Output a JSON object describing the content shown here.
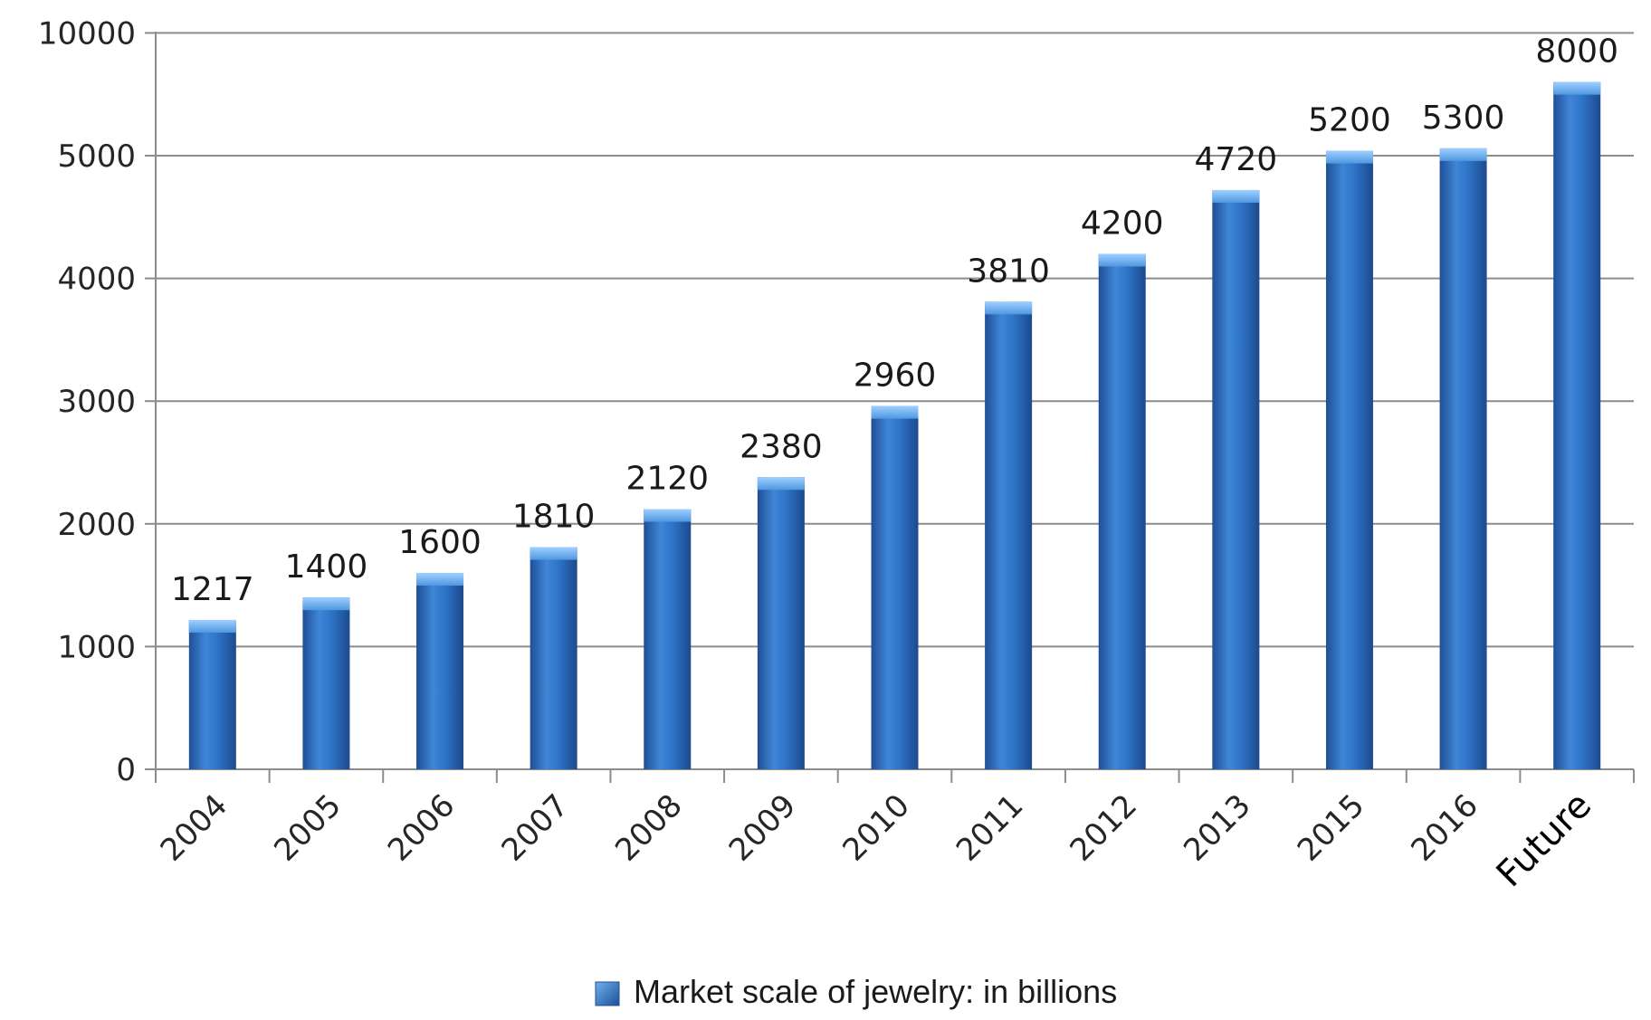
{
  "chart_data": {
    "type": "bar",
    "categories": [
      "2004",
      "2005",
      "2006",
      "2007",
      "2008",
      "2009",
      "2010",
      "2011",
      "2012",
      "2013",
      "2015",
      "2016",
      "Future"
    ],
    "series": [
      {
        "name": "Market scale of jewelry: in billions",
        "values": [
          1217,
          1400,
          1600,
          1810,
          2120,
          2380,
          2960,
          3810,
          4200,
          4720,
          5200,
          5300,
          8000
        ]
      }
    ],
    "y_tick_labels": [
      "0",
      "1000",
      "2000",
      "3000",
      "4000",
      "5000",
      "10000"
    ],
    "y_scale_note_values": [
      0,
      1000,
      2000,
      3000,
      4000,
      5000,
      10000
    ],
    "grid": true,
    "legend_position": "bottom-center",
    "colors": {
      "bar": "#2f74c8",
      "bar_light": "#6fb0f0",
      "bar_dark": "#1f4f96",
      "grid": "#8c8c8c",
      "axis": "#8c8c8c"
    }
  }
}
